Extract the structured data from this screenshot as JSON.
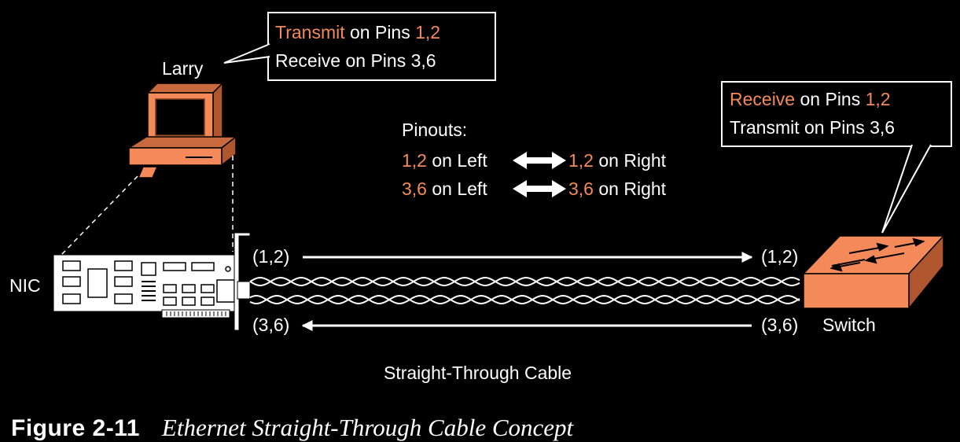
{
  "colors": {
    "accent": "#f4895a",
    "text": "#ffffff",
    "background": "#000000",
    "device_fill": "#f4895a"
  },
  "icons": [
    "computer-icon",
    "nic-card-icon",
    "switch-icon",
    "arrow-icon",
    "twisted-pair-icon"
  ],
  "larry": {
    "name": "Larry",
    "callout": {
      "line1_highlight": "Transmit",
      "line1_rest": " on Pins ",
      "line1_pins": "1,2",
      "line2": "Receive on Pins 3,6"
    }
  },
  "switch": {
    "name": "Switch",
    "callout": {
      "line1_highlight": "Receive",
      "line1_rest": " on Pins ",
      "line1_pins": "1,2",
      "line2": "Transmit on Pins 3,6"
    }
  },
  "nic": {
    "label": "NIC"
  },
  "pinouts": {
    "heading": "Pinouts:",
    "rows": [
      {
        "left_pins": "1,2",
        "left_text": " on Left",
        "right_pins": "1,2",
        "right_text": " on Right"
      },
      {
        "left_pins": "3,6",
        "left_text": " on Left",
        "right_pins": "3,6",
        "right_text": " on Right"
      }
    ]
  },
  "cable": {
    "top_left_label": "(1,2)",
    "top_right_label": "(1,2)",
    "bottom_left_label": "(3,6)",
    "bottom_right_label": "(3,6)",
    "name": "Straight-Through Cable"
  },
  "caption": {
    "label": "Figure 2-11",
    "title": "Ethernet Straight-Through Cable Concept"
  }
}
